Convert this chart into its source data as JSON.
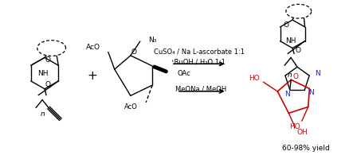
{
  "background_color": "#ffffff",
  "figsize": [
    4.43,
    2.0
  ],
  "dpi": 100,
  "conditions_line1": "CuSO₄ / Na L-ascorbate 1:1",
  "conditions_line2": "ᵗBuOH / H₂O 1:1",
  "conditions_line3": "MeONa / MeOH",
  "yield_text": "60-98% yield",
  "text_color": "#000000",
  "arrow_color": "#000000",
  "blue_color": "#1a1aff",
  "red_color": "#cc0000",
  "font_size_conditions": 6.0,
  "font_size_yield": 6.5,
  "font_size_atoms": 6.5,
  "font_size_plus": 11
}
